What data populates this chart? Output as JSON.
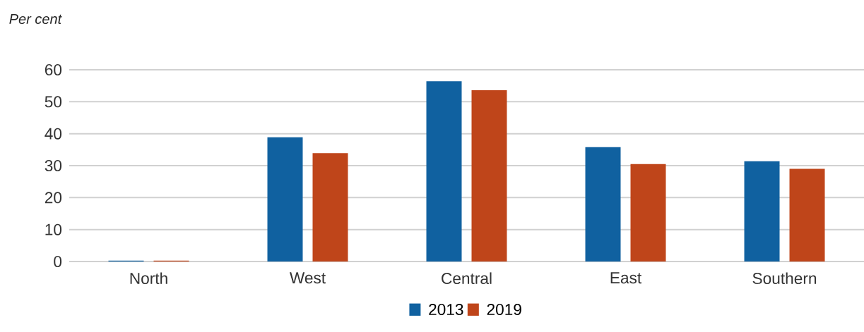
{
  "chart_data": {
    "type": "bar",
    "ylabel": "Per cent",
    "categories": [
      "North",
      "West",
      "Central",
      "East",
      "Southern"
    ],
    "series": [
      {
        "name": "2013",
        "color": "#1061a0",
        "values": [
          0.3,
          38.9,
          56.4,
          35.8,
          31.4
        ]
      },
      {
        "name": "2019",
        "color": "#bf451a",
        "values": [
          0.3,
          33.9,
          53.6,
          30.5,
          29.0
        ]
      }
    ],
    "ylim": [
      0,
      60
    ],
    "yticks": [
      0,
      10,
      20,
      30,
      40,
      50,
      60
    ],
    "grid": "y",
    "legend": "bottom"
  }
}
